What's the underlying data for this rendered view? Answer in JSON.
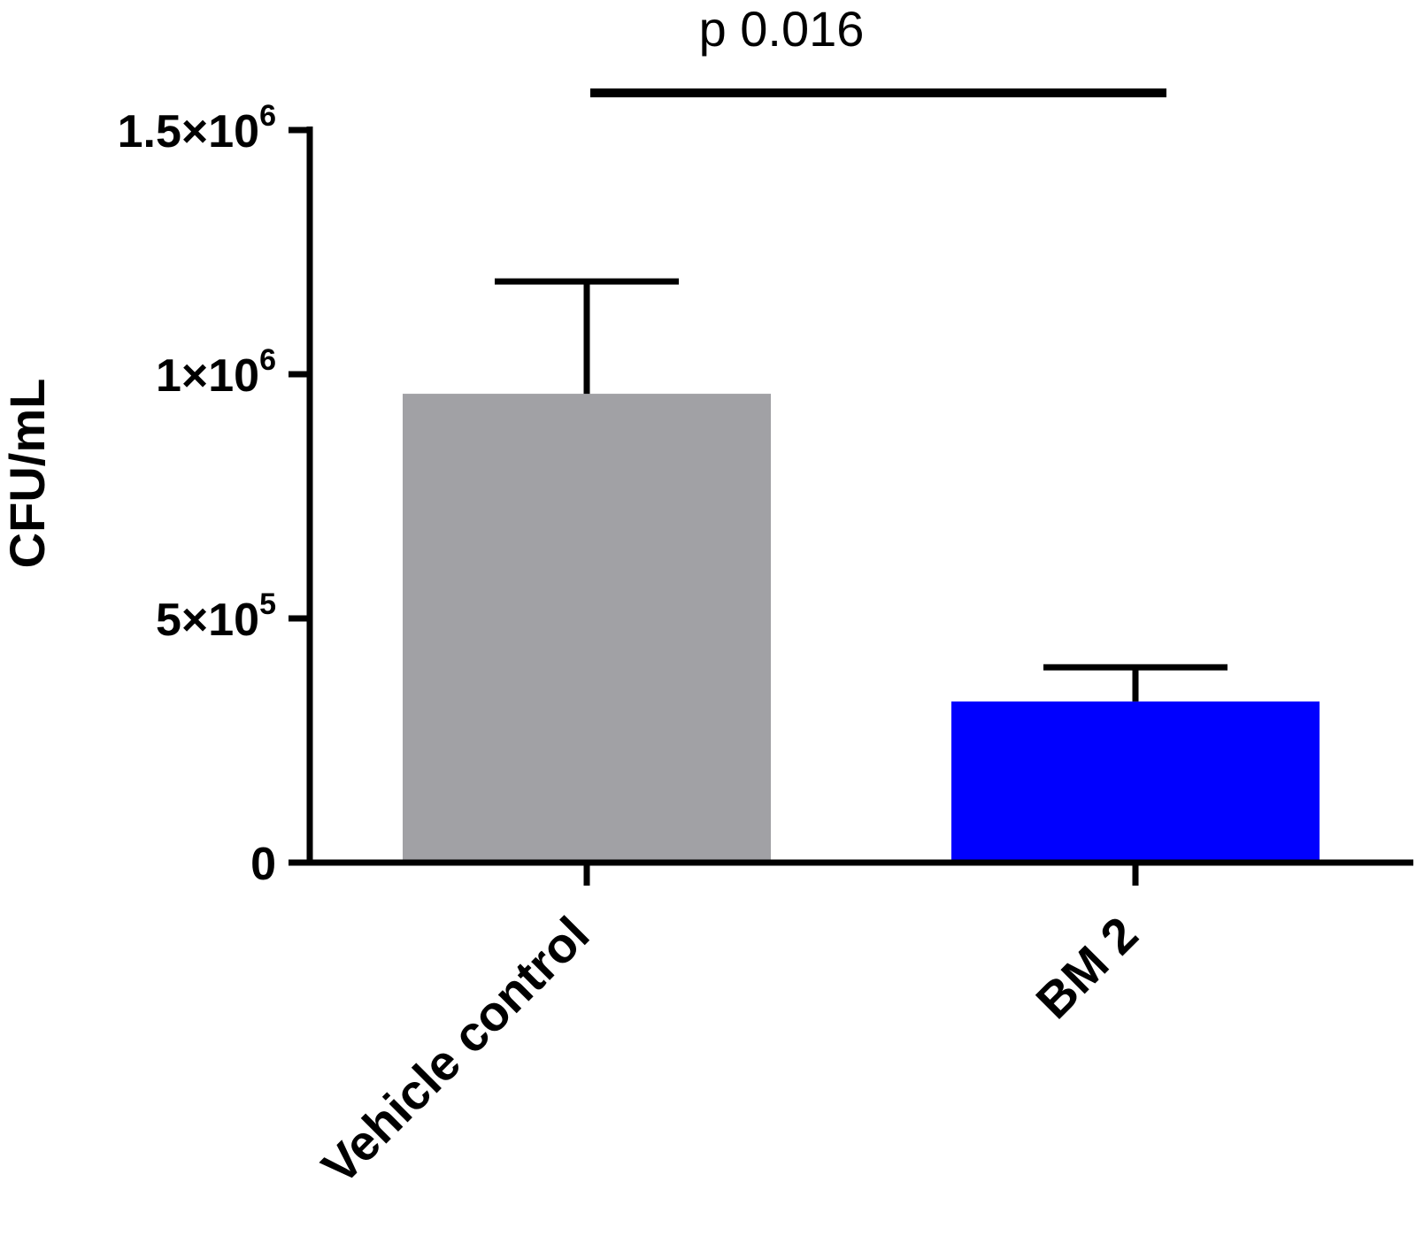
{
  "chart_data": {
    "type": "bar",
    "categories": [
      "Vehicle control",
      "BM 2"
    ],
    "values": [
      960000,
      330000
    ],
    "error_upper": [
      1190000,
      400000
    ],
    "colors": [
      "#a1a1a5",
      "#0000ff"
    ],
    "ylabel": "CFU/mL",
    "xlabel": "",
    "ylim": [
      0,
      1500000
    ],
    "yticks": [
      {
        "value": 0,
        "mantissa": "0",
        "exponent": ""
      },
      {
        "value": 500000,
        "mantissa": "5×10",
        "exponent": "5"
      },
      {
        "value": 1000000,
        "mantissa": "1×10",
        "exponent": "6"
      },
      {
        "value": 1500000,
        "mantissa": "1.5×10",
        "exponent": "6"
      }
    ],
    "annotation": {
      "text": "p 0.016",
      "from": "Vehicle control",
      "to": "BM 2"
    },
    "grid": false,
    "legend": "none"
  }
}
